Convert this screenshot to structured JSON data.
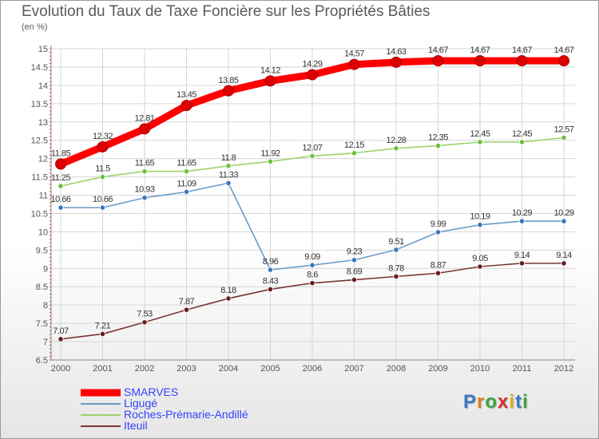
{
  "title": "Evolution du Taux de Taxe Foncière sur les Propriétés Bâties",
  "unit": "(en %)",
  "logo": {
    "text": "Proxiti",
    "letters": [
      "P",
      "r",
      "o",
      "x",
      "i",
      "t",
      "i"
    ],
    "colors": [
      "#3a78c2",
      "#e07f1f",
      "#3aa53a",
      "#d12f2f",
      "#e0b01f",
      "#3a78c2",
      "#3aa53a"
    ]
  },
  "chart_data": {
    "type": "line",
    "title": "Evolution du Taux de Taxe Foncière sur les Propriétés Bâties",
    "ylabel": "(en %)",
    "xlabel": "",
    "x": [
      "2000",
      "2001",
      "2002",
      "2003",
      "2004",
      "2005",
      "2006",
      "2007",
      "2008",
      "2009",
      "2010",
      "2011",
      "2012"
    ],
    "ylim": [
      6.5,
      15
    ],
    "yticks": [
      6.5,
      7,
      7.5,
      8,
      8.5,
      9,
      9.5,
      10,
      10.5,
      11,
      11.5,
      12,
      12.5,
      13,
      13.5,
      14,
      14.5,
      15
    ],
    "ytick_labels": [
      "6.5",
      "7",
      "7.5",
      "8",
      "8.5",
      "9",
      "9.5",
      "10",
      "10.5",
      "11",
      "11.5",
      "12",
      "12.5",
      "13",
      "13.5",
      "14",
      "14.5",
      "15"
    ],
    "grid": true,
    "legend_position": "bottom-left",
    "series": [
      {
        "name": "SMARVES",
        "color": "#ff0000",
        "point_color": "#dd0000",
        "bold": true,
        "values": [
          11.85,
          12.32,
          12.81,
          13.45,
          13.85,
          14.12,
          14.29,
          14.57,
          14.63,
          14.67,
          14.67,
          14.67,
          14.67
        ],
        "labels": [
          "11.85",
          "12.32",
          "12.81",
          "13.45",
          "13.85",
          "14.12",
          "14.29",
          "14.57",
          "14.63",
          "14.67",
          "14.67",
          "14.67",
          "14.67"
        ]
      },
      {
        "name": "Ligugé",
        "color": "#6b9bc8",
        "point_color": "#3a78c2",
        "bold": false,
        "values": [
          10.66,
          10.66,
          10.93,
          11.09,
          11.33,
          8.96,
          9.09,
          9.23,
          9.51,
          9.99,
          10.19,
          10.29,
          10.29
        ],
        "labels": [
          "10.66",
          "10.66",
          "10.93",
          "11.09",
          "11.33",
          "8.96",
          "9.09",
          "9.23",
          "9.51",
          "9.99",
          "10.19",
          "10.29",
          "10.29"
        ]
      },
      {
        "name": "Roches-Prémarie-Andillé",
        "color": "#9ed36a",
        "point_color": "#6cc23a",
        "bold": false,
        "values": [
          11.25,
          11.5,
          11.65,
          11.65,
          11.8,
          11.92,
          12.07,
          12.15,
          12.28,
          12.35,
          12.45,
          12.45,
          12.57
        ],
        "labels": [
          "11.25",
          "11.5",
          "11.65",
          "11.65",
          "11.8",
          "11.92",
          "12.07",
          "12.15",
          "12.28",
          "12.35",
          "12.45",
          "12.45",
          "12.57"
        ]
      },
      {
        "name": "Iteuil",
        "color": "#7a3535",
        "point_color": "#6a1f1f",
        "bold": false,
        "values": [
          7.07,
          7.21,
          7.53,
          7.87,
          8.18,
          8.43,
          8.6,
          8.69,
          8.78,
          8.87,
          9.05,
          9.14,
          9.14
        ],
        "labels": [
          "7.07",
          "7.21",
          "7.53",
          "7.87",
          "8.18",
          "8.43",
          "8.6",
          "8.69",
          "8.78",
          "8.87",
          "9.05",
          "9.14",
          "9.14"
        ]
      }
    ]
  }
}
